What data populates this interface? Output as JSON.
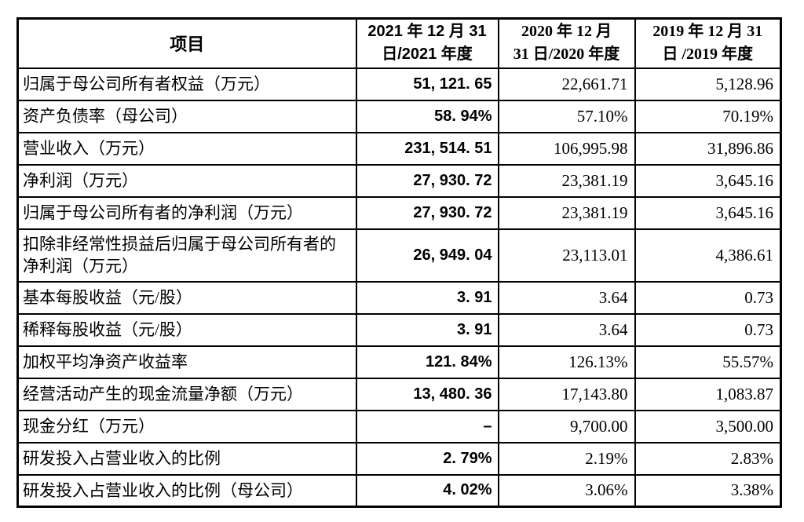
{
  "page": {
    "background_color": "#ffffff",
    "border_color": "#000000",
    "text_color": "#000000"
  },
  "header": {
    "item_label": "项目",
    "col_2021": {
      "line1": "2021 年 12 月 31",
      "line2": "日/2021 年度"
    },
    "col_2020": {
      "line1": "2020 年 12 月",
      "line2": "31 日/2020 年度"
    },
    "col_2019": {
      "line1": "2019 年 12 月 31",
      "line2": "日 /2019 年度"
    }
  },
  "rows": [
    {
      "item": "归属于母公司所有者权益（万元）",
      "v2021": "51, 121. 65",
      "v2020": "22,661.71",
      "v2019": "5,128.96"
    },
    {
      "item": "资产负债率（母公司）",
      "v2021": "58. 94%",
      "v2020": "57.10%",
      "v2019": "70.19%"
    },
    {
      "item": "营业收入（万元）",
      "v2021": "231, 514. 51",
      "v2020": "106,995.98",
      "v2019": "31,896.86"
    },
    {
      "item": "净利润（万元）",
      "v2021": "27, 930. 72",
      "v2020": "23,381.19",
      "v2019": "3,645.16"
    },
    {
      "item": "归属于母公司所有者的净利润（万元）",
      "v2021": "27, 930. 72",
      "v2020": "23,381.19",
      "v2019": "3,645.16"
    },
    {
      "item": "扣除非经常性损益后归属于母公司所有者的净利润（万元）",
      "v2021": "26, 949. 04",
      "v2020": "23,113.01",
      "v2019": "4,386.61"
    },
    {
      "item": "基本每股收益（元/股）",
      "v2021": "3. 91",
      "v2020": "3.64",
      "v2019": "0.73"
    },
    {
      "item": "稀释每股收益（元/股）",
      "v2021": "3. 91",
      "v2020": "3.64",
      "v2019": "0.73"
    },
    {
      "item": "加权平均净资产收益率",
      "v2021": "121. 84%",
      "v2020": "126.13%",
      "v2019": "55.57%"
    },
    {
      "item": "经营活动产生的现金流量净额（万元）",
      "v2021": "13, 480. 36",
      "v2020": "17,143.80",
      "v2019": "1,083.87"
    },
    {
      "item": "现金分红（万元）",
      "v2021": "–",
      "v2020": "9,700.00",
      "v2019": "3,500.00"
    },
    {
      "item": "研发投入占营业收入的比例",
      "v2021": "2. 79%",
      "v2020": "2.19%",
      "v2019": "2.83%"
    },
    {
      "item": "研发投入占营业收入的比例（母公司）",
      "v2021": "4. 02%",
      "v2020": "3.06%",
      "v2019": "3.38%"
    }
  ]
}
